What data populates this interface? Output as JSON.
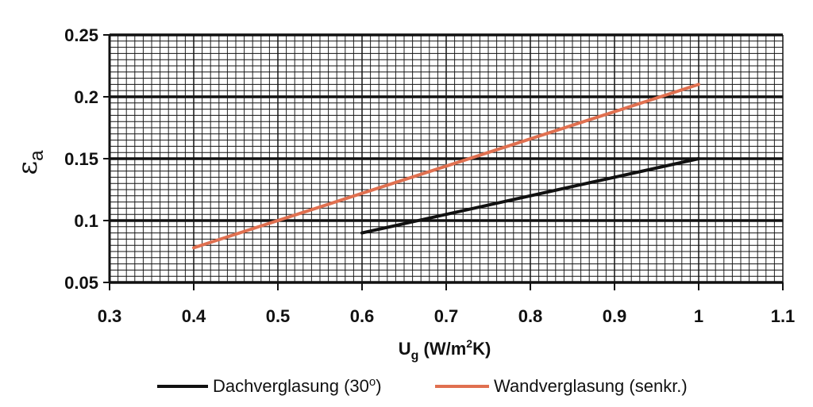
{
  "chart_data": {
    "type": "line",
    "title": "",
    "xlabel": {
      "base": "U",
      "sub": "g",
      "pre": " (W/m",
      "sup": "2",
      "post": "K)"
    },
    "ylabel": {
      "base": "ε",
      "sub": "a"
    },
    "xlim": [
      0.3,
      1.1
    ],
    "ylim": [
      0.05,
      0.25
    ],
    "xticks": [
      "0.3",
      "0.4",
      "0.5",
      "0.6",
      "0.7",
      "0.8",
      "0.9",
      "1",
      "1.1"
    ],
    "yticks": [
      "0.05",
      "0.1",
      "0.15",
      "0.2",
      "0.25"
    ],
    "grid": true,
    "legend_position": "bottom",
    "series": [
      {
        "name": "Dachverglasung (30º)",
        "name_parts": {
          "pre": "Dachverglasung (30",
          "sup": "o",
          "post": ")"
        },
        "color": "#111111",
        "x": [
          0.6,
          1.0
        ],
        "y": [
          0.09,
          0.15
        ]
      },
      {
        "name": "Wandverglasung (senkr.)",
        "color": "#e07050",
        "x": [
          0.4,
          1.0
        ],
        "y": [
          0.078,
          0.21
        ]
      }
    ]
  }
}
